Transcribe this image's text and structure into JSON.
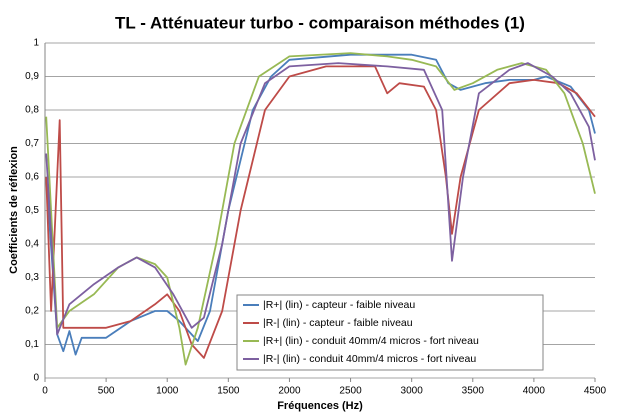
{
  "chart_data": {
    "type": "line",
    "title": "TL - Atténuateur turbo - comparaison méthodes (1)",
    "x_label": "Fréquences (Hz)",
    "y_label": "Coefficients de réflexion",
    "xlim": [
      0,
      4500
    ],
    "xticks": [
      0,
      500,
      1000,
      1500,
      2000,
      2500,
      3000,
      3500,
      4000,
      4500
    ],
    "ylim": [
      0,
      1
    ],
    "yticks": [
      0,
      {
        "value": 0.1,
        "label": "0,1"
      },
      {
        "value": 0.2,
        "label": "0,2"
      },
      {
        "value": 0.3,
        "label": "0,3"
      },
      {
        "value": 0.4,
        "label": "0,4"
      },
      {
        "value": 0.5,
        "label": "0,5"
      },
      {
        "value": 0.6,
        "label": "0,6"
      },
      {
        "value": 0.7,
        "label": "0,7"
      },
      {
        "value": 0.8,
        "label": "0,8"
      },
      {
        "value": 0.9,
        "label": "0,9"
      },
      1
    ],
    "grid": true,
    "legend": "lower-right",
    "series": [
      {
        "name": "|R+| (lin) - capteur - faible niveau",
        "color": "#4a7ebb",
        "x": [
          10,
          100,
          150,
          200,
          250,
          300,
          500,
          700,
          900,
          1000,
          1100,
          1250,
          1350,
          1500,
          1700,
          1850,
          2000,
          2500,
          3000,
          3200,
          3300,
          3400,
          3600,
          3800,
          4000,
          4100,
          4300,
          4450,
          4500
        ],
        "values": [
          0.6,
          0.13,
          0.08,
          0.14,
          0.07,
          0.12,
          0.12,
          0.17,
          0.2,
          0.2,
          0.17,
          0.11,
          0.2,
          0.5,
          0.8,
          0.9,
          0.95,
          0.965,
          0.965,
          0.95,
          0.88,
          0.86,
          0.88,
          0.89,
          0.89,
          0.9,
          0.87,
          0.8,
          0.73
        ]
      },
      {
        "name": "|R-| (lin) - capteur - faible niveau",
        "color": "#be4b48",
        "x": [
          10,
          50,
          120,
          150,
          300,
          500,
          700,
          900,
          1000,
          1100,
          1200,
          1300,
          1450,
          1600,
          1800,
          2000,
          2300,
          2700,
          2800,
          2900,
          3100,
          3200,
          3280,
          3330,
          3400,
          3550,
          3800,
          4000,
          4200,
          4350,
          4500
        ],
        "values": [
          0.6,
          0.2,
          0.77,
          0.15,
          0.15,
          0.15,
          0.17,
          0.22,
          0.25,
          0.2,
          0.1,
          0.06,
          0.2,
          0.5,
          0.8,
          0.9,
          0.93,
          0.93,
          0.85,
          0.88,
          0.87,
          0.8,
          0.6,
          0.43,
          0.6,
          0.8,
          0.88,
          0.89,
          0.88,
          0.85,
          0.78
        ]
      },
      {
        "name": "|R+| (lin) - conduit 40mm/4 micros - fort niveau",
        "color": "#98b954",
        "x": [
          10,
          100,
          200,
          400,
          600,
          750,
          900,
          1000,
          1100,
          1150,
          1250,
          1400,
          1550,
          1750,
          2000,
          2500,
          2800,
          3000,
          3200,
          3350,
          3500,
          3700,
          3900,
          4100,
          4250,
          4400,
          4500
        ],
        "values": [
          0.78,
          0.15,
          0.2,
          0.25,
          0.33,
          0.36,
          0.34,
          0.3,
          0.15,
          0.04,
          0.15,
          0.4,
          0.7,
          0.9,
          0.96,
          0.97,
          0.96,
          0.95,
          0.93,
          0.86,
          0.88,
          0.92,
          0.94,
          0.92,
          0.85,
          0.7,
          0.55
        ]
      },
      {
        "name": "|R-| (lin) - conduit 40mm/4 micros - fort niveau",
        "color": "#7d60a0",
        "x": [
          10,
          100,
          200,
          400,
          600,
          750,
          900,
          1050,
          1200,
          1300,
          1450,
          1600,
          1800,
          2000,
          2400,
          2800,
          3100,
          3250,
          3330,
          3420,
          3550,
          3800,
          3950,
          4150,
          4300,
          4450,
          4500
        ],
        "values": [
          0.67,
          0.13,
          0.22,
          0.28,
          0.33,
          0.36,
          0.33,
          0.25,
          0.15,
          0.18,
          0.4,
          0.7,
          0.88,
          0.93,
          0.94,
          0.93,
          0.92,
          0.8,
          0.35,
          0.6,
          0.85,
          0.92,
          0.94,
          0.9,
          0.85,
          0.75,
          0.65
        ]
      }
    ]
  }
}
